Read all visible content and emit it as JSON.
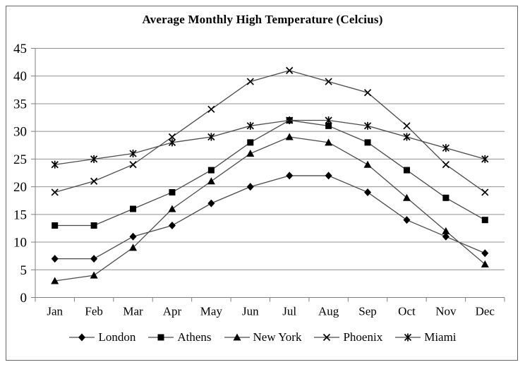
{
  "chart_data": {
    "type": "line",
    "title": "Average Monthly High Temperature (Celcius)",
    "xlabel": "",
    "ylabel": "",
    "categories": [
      "Jan",
      "Feb",
      "Mar",
      "Apr",
      "May",
      "Jun",
      "Jul",
      "Aug",
      "Sep",
      "Oct",
      "Nov",
      "Dec"
    ],
    "series": [
      {
        "name": "London",
        "marker": "diamond",
        "values": [
          7,
          7,
          11,
          13,
          17,
          20,
          22,
          22,
          19,
          14,
          11,
          8
        ]
      },
      {
        "name": "Athens",
        "marker": "square",
        "values": [
          13,
          13,
          16,
          19,
          23,
          28,
          32,
          31,
          28,
          23,
          18,
          14
        ]
      },
      {
        "name": "New York",
        "marker": "triangle",
        "values": [
          3,
          4,
          9,
          16,
          21,
          26,
          29,
          28,
          24,
          18,
          12,
          6
        ]
      },
      {
        "name": "Phoenix",
        "marker": "x",
        "values": [
          19,
          21,
          24,
          29,
          34,
          39,
          41,
          39,
          37,
          31,
          24,
          19
        ]
      },
      {
        "name": "Miami",
        "marker": "star",
        "values": [
          24,
          25,
          26,
          28,
          29,
          31,
          32,
          32,
          31,
          29,
          27,
          25
        ]
      }
    ],
    "ylim": [
      0,
      45
    ],
    "y_ticks": [
      0,
      5,
      10,
      15,
      20,
      25,
      30,
      35,
      40,
      45
    ],
    "grid": "horizontal",
    "legend_position": "bottom"
  },
  "colors": {
    "background": "#ffffff",
    "frame_border": "#666666",
    "gridline": "#909090",
    "axis": "#808080",
    "series_line": "#4a4a4a",
    "marker": "#000000",
    "text": "#000000"
  }
}
